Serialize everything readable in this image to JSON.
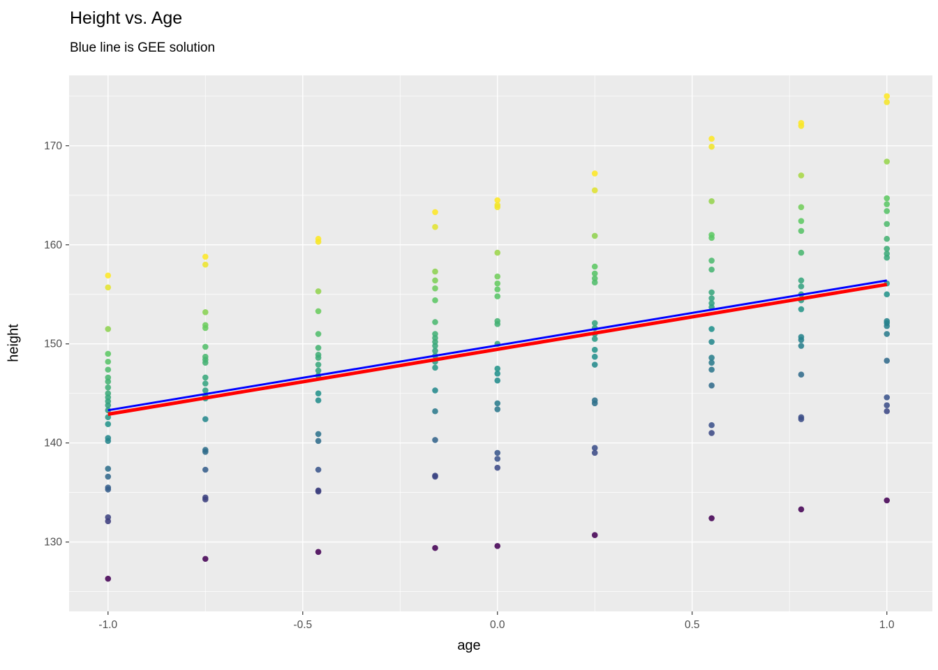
{
  "title": "Height vs. Age",
  "subtitle": "Blue line is GEE solution",
  "chart_data": {
    "type": "scatter",
    "title": "Height vs. Age",
    "subtitle": "Blue line is GEE solution",
    "xlabel": "age",
    "ylabel": "height",
    "xlim": [
      -1.1,
      1.117
    ],
    "ylim": [
      123.0,
      177.1
    ],
    "x_ticks": [
      -1.0,
      -0.5,
      0.0,
      0.5,
      1.0
    ],
    "x_tick_labels": [
      "-1.0",
      "-0.5",
      "0.0",
      "0.5",
      "1.0"
    ],
    "x_minor": [
      -0.75,
      -0.25,
      0.25,
      0.75
    ],
    "y_ticks": [
      130,
      140,
      150,
      160,
      170
    ],
    "y_tick_labels": [
      "130",
      "140",
      "150",
      "160",
      "170"
    ],
    "y_minor": [
      125,
      135,
      145,
      155,
      165,
      175
    ],
    "grid": "major and minor white gridlines on gray panel",
    "legend": "none",
    "point_color_scale": "viridis (dark purple = low within group, yellow = high within group)",
    "clusters": [
      {
        "x": -1.0,
        "ys": [
          156.9,
          155.7,
          151.5,
          149.0,
          148.2,
          147.4,
          146.6,
          146.2,
          145.6,
          145.0,
          144.6,
          144.2,
          143.8,
          143.3,
          142.6,
          141.9,
          140.5,
          140.2,
          137.4,
          136.6,
          135.5,
          135.3,
          132.5,
          132.1,
          126.3
        ]
      },
      {
        "x": -0.75,
        "ys": [
          158.8,
          158.0,
          153.2,
          151.9,
          151.6,
          149.7,
          148.7,
          148.4,
          148.1,
          146.6,
          146.0,
          145.3,
          144.7,
          144.5,
          142.4,
          139.3,
          139.1,
          137.3,
          134.5,
          134.3,
          128.3
        ]
      },
      {
        "x": -0.46,
        "ys": [
          160.6,
          160.3,
          155.3,
          153.3,
          151.0,
          149.6,
          148.9,
          148.6,
          147.9,
          147.3,
          146.8,
          145.0,
          144.3,
          140.9,
          140.2,
          137.3,
          135.2,
          135.1,
          129.0
        ]
      },
      {
        "x": -0.16,
        "ys": [
          163.3,
          161.8,
          157.3,
          156.4,
          155.6,
          154.4,
          152.2,
          151.0,
          150.6,
          150.2,
          149.8,
          149.3,
          148.8,
          148.2,
          147.6,
          145.3,
          143.2,
          140.3,
          136.7,
          136.6,
          129.4
        ]
      },
      {
        "x": 0.0,
        "ys": [
          164.5,
          164.0,
          163.8,
          159.2,
          156.8,
          156.1,
          155.5,
          154.8,
          152.3,
          152.0,
          150.0,
          147.5,
          147.0,
          146.3,
          144.0,
          143.4,
          139.0,
          138.4,
          137.5,
          129.6
        ]
      },
      {
        "x": 0.25,
        "ys": [
          167.2,
          165.5,
          160.9,
          157.8,
          157.1,
          156.6,
          156.2,
          152.1,
          151.6,
          151.0,
          150.5,
          149.4,
          148.7,
          147.9,
          144.3,
          144.0,
          139.5,
          139.0,
          130.7
        ]
      },
      {
        "x": 0.55,
        "ys": [
          170.7,
          169.9,
          164.4,
          161.0,
          160.7,
          158.4,
          157.5,
          155.2,
          154.6,
          154.1,
          153.7,
          151.5,
          150.2,
          148.6,
          148.1,
          147.4,
          145.8,
          141.8,
          141.0,
          132.4
        ]
      },
      {
        "x": 0.78,
        "ys": [
          172.3,
          172.0,
          167.0,
          163.8,
          162.4,
          161.4,
          159.2,
          156.4,
          155.8,
          155.0,
          154.4,
          153.5,
          150.7,
          150.4,
          149.8,
          146.9,
          142.6,
          142.4,
          133.3
        ]
      },
      {
        "x": 1.0,
        "ys": [
          175.0,
          174.4,
          168.4,
          164.7,
          164.1,
          163.4,
          162.1,
          160.6,
          159.6,
          159.1,
          158.7,
          156.1,
          155.0,
          152.3,
          152.1,
          151.8,
          151.0,
          148.3,
          144.6,
          143.8,
          143.2,
          134.2
        ]
      }
    ],
    "lines": [
      {
        "id": "red-fit-line",
        "color": "#FF0000",
        "width": 5,
        "x": [
          -1.0,
          1.0
        ],
        "y": [
          142.9,
          156.0
        ]
      },
      {
        "id": "blue-gee-line",
        "color": "#0000FF",
        "width": 3,
        "x": [
          -1.0,
          1.0
        ],
        "y": [
          143.3,
          156.4
        ]
      }
    ]
  },
  "theme": {
    "panel_background": "#EBEBEB",
    "grid_color": "#FFFFFF",
    "tick_color": "#333333",
    "tick_label_color": "#4d4d4d",
    "title_color": "#000000",
    "viridis_stops": [
      {
        "t": 0.0,
        "rgb": [
          68,
          1,
          84
        ]
      },
      {
        "t": 0.25,
        "rgb": [
          59,
          82,
          139
        ]
      },
      {
        "t": 0.5,
        "rgb": [
          33,
          145,
          140
        ]
      },
      {
        "t": 0.75,
        "rgb": [
          94,
          201,
          98
        ]
      },
      {
        "t": 1.0,
        "rgb": [
          253,
          231,
          37
        ]
      }
    ]
  }
}
